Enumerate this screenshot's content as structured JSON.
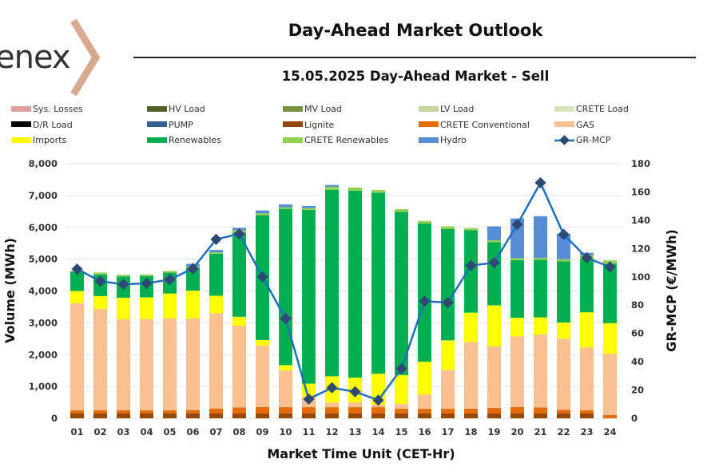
{
  "brand": {
    "logo_text": "enex"
  },
  "header": {
    "title": "Day-Ahead Market Outlook",
    "subtitle": "15.05.2025  Day-Ahead Market - Sell"
  },
  "colors": {
    "line": "#1f6fbf",
    "marker": "#2e4a72",
    "grid": "#e2e2e2"
  },
  "chart_data": {
    "type": "bar",
    "stacked": true,
    "title": "15.05.2025  Day-Ahead Market - Sell",
    "xlabel": "Market Time Unit (CET-Hr)",
    "ylabel": "Volume (MWh)",
    "y2label": "GR-MCP (€/MWh)",
    "ylim": [
      0,
      8000
    ],
    "y2lim": [
      0,
      180
    ],
    "yticks": [
      "0",
      "1,000",
      "2,000",
      "3,000",
      "4,000",
      "5,000",
      "6,000",
      "7,000",
      "8,000"
    ],
    "y2ticks": [
      "0",
      "20",
      "40",
      "60",
      "80",
      "100",
      "120",
      "140",
      "160",
      "180"
    ],
    "grid": true,
    "legend_position": "top",
    "categories": [
      "01",
      "02",
      "03",
      "04",
      "05",
      "06",
      "07",
      "08",
      "09",
      "10",
      "11",
      "12",
      "13",
      "14",
      "15",
      "16",
      "17",
      "18",
      "19",
      "20",
      "21",
      "22",
      "23",
      "24"
    ],
    "legend": [
      {
        "name": "Sys. Losses",
        "color": "#e0a09c",
        "kind": "bar"
      },
      {
        "name": "HV Load",
        "color": "#4f6228",
        "kind": "bar"
      },
      {
        "name": "MV Load",
        "color": "#77933c",
        "kind": "bar"
      },
      {
        "name": "LV Load",
        "color": "#c3d69b",
        "kind": "bar"
      },
      {
        "name": "CRETE Load",
        "color": "#d7e4bd",
        "kind": "bar"
      },
      {
        "name": "D/R Load",
        "color": "#000000",
        "kind": "bar"
      },
      {
        "name": "PUMP",
        "color": "#366092",
        "kind": "bar"
      },
      {
        "name": "Lignite",
        "color": "#974706",
        "kind": "bar"
      },
      {
        "name": "CRETE Conventional",
        "color": "#e46c0a",
        "kind": "bar"
      },
      {
        "name": "GAS",
        "color": "#fac090",
        "kind": "bar"
      },
      {
        "name": "Imports",
        "color": "#ffff00",
        "kind": "bar"
      },
      {
        "name": "Renewables",
        "color": "#00b050",
        "kind": "bar"
      },
      {
        "name": "CRETE Renewables",
        "color": "#92d050",
        "kind": "bar"
      },
      {
        "name": "Hydro",
        "color": "#558ed5",
        "kind": "bar"
      },
      {
        "name": "GR-MCP",
        "color": "#1f6fbf",
        "kind": "line"
      }
    ],
    "series": [
      {
        "name": "Lignite",
        "color": "#974706",
        "values": [
          150,
          150,
          150,
          150,
          150,
          150,
          150,
          150,
          150,
          150,
          150,
          150,
          150,
          150,
          150,
          150,
          150,
          150,
          150,
          150,
          150,
          150,
          150,
          0
        ]
      },
      {
        "name": "CRETE Conventional",
        "color": "#e46c0a",
        "values": [
          100,
          100,
          100,
          100,
          100,
          110,
          160,
          190,
          200,
          200,
          200,
          200,
          200,
          200,
          150,
          150,
          150,
          150,
          180,
          200,
          190,
          120,
          100,
          100
        ]
      },
      {
        "name": "GAS",
        "color": "#fac090",
        "values": [
          3370,
          3190,
          2860,
          2870,
          2890,
          2880,
          2990,
          2570,
          1940,
          1150,
          320,
          150,
          150,
          80,
          150,
          450,
          1220,
          2100,
          1930,
          2220,
          2290,
          2230,
          1980,
          1930
        ]
      },
      {
        "name": "Imports",
        "color": "#ffff00",
        "values": [
          380,
          400,
          680,
          680,
          780,
          870,
          550,
          280,
          170,
          170,
          420,
          820,
          780,
          970,
          910,
          1030,
          930,
          920,
          1290,
          590,
          540,
          510,
          1100,
          960
        ]
      },
      {
        "name": "Renewables",
        "color": "#00b050",
        "values": [
          600,
          680,
          670,
          670,
          660,
          720,
          1320,
          2640,
          3920,
          4910,
          5460,
          5860,
          5870,
          5690,
          5130,
          4340,
          3500,
          2590,
          1980,
          1810,
          1810,
          1920,
          1680,
          1860
        ]
      },
      {
        "name": "CRETE Renewables",
        "color": "#92d050",
        "values": [
          40,
          60,
          50,
          50,
          50,
          40,
          40,
          80,
          60,
          50,
          50,
          90,
          100,
          80,
          80,
          80,
          80,
          60,
          60,
          60,
          60,
          70,
          120,
          110
        ]
      },
      {
        "name": "Hydro",
        "color": "#558ed5",
        "values": [
          0,
          0,
          0,
          0,
          0,
          80,
          80,
          70,
          90,
          90,
          70,
          60,
          0,
          0,
          0,
          0,
          0,
          0,
          440,
          1250,
          1310,
          800,
          70,
          0
        ]
      },
      {
        "name": "GR-MCP",
        "color": "#1f6fbf",
        "axis": "y2",
        "values": [
          105.5,
          96.9,
          94.7,
          95.4,
          98.1,
          105.9,
          126.5,
          130.4,
          100.0,
          70.5,
          13.6,
          21.6,
          18.8,
          12.8,
          35.0,
          82.8,
          81.8,
          108.0,
          110.0,
          137.0,
          166.5,
          130.0,
          113.5,
          107.0
        ]
      }
    ]
  }
}
